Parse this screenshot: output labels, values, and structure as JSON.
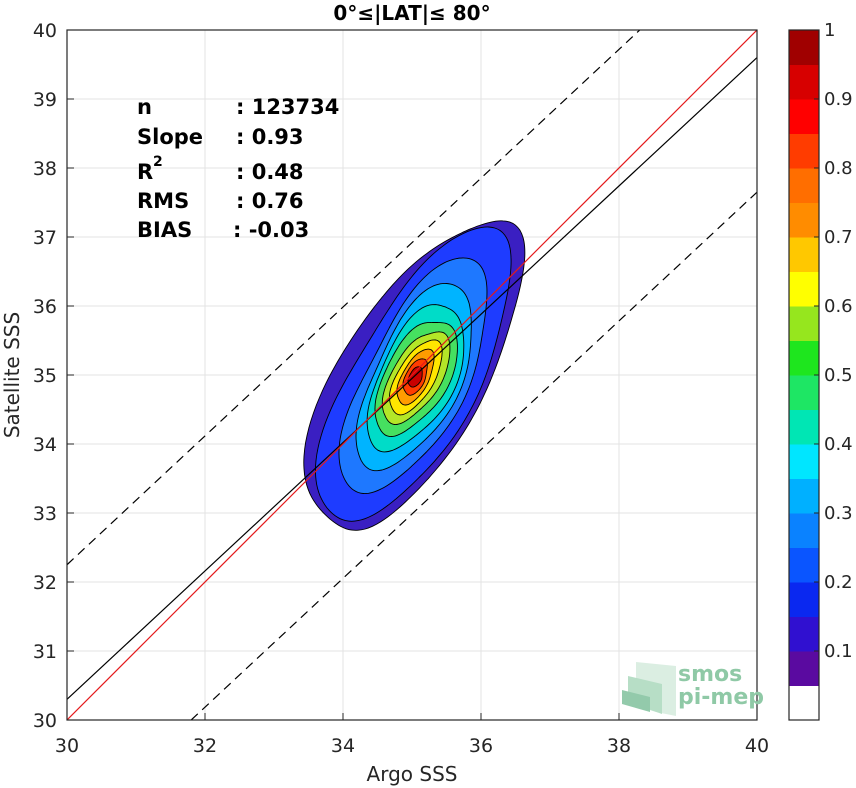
{
  "chart_data": {
    "type": "heatmap",
    "title": "0°≤|LAT|≤ 80°",
    "xlabel": "Argo SSS",
    "ylabel": "Satellite SSS",
    "xlim": [
      30,
      40
    ],
    "ylim": [
      30,
      40
    ],
    "xticks": [
      "30",
      "32",
      "34",
      "36",
      "38",
      "40"
    ],
    "yticks": [
      "30",
      "31",
      "32",
      "33",
      "34",
      "35",
      "36",
      "37",
      "38",
      "39",
      "40"
    ],
    "grid": true,
    "stats": [
      {
        "label": "n",
        "value": ": 123734"
      },
      {
        "label": "Slope",
        "value": ": 0.93"
      },
      {
        "label": "R",
        "sup": "2",
        "value": ": 0.48"
      },
      {
        "label": "RMS",
        "value": ": 0.76"
      },
      {
        "label": "BIAS",
        "value": ": -0.03"
      }
    ],
    "lines": {
      "identity": {
        "color": "#e41a1c",
        "from": [
          30,
          30
        ],
        "to": [
          40,
          40
        ]
      },
      "fit": {
        "color": "#000000",
        "from": [
          30,
          30.3
        ],
        "to": [
          40,
          39.6
        ]
      },
      "upper_bound": {
        "color": "#000000",
        "style": "dashed",
        "from": [
          30,
          32.25
        ],
        "to": [
          38.3,
          40
        ]
      },
      "lower_bound": {
        "color": "#000000",
        "style": "dashed",
        "from": [
          31.8,
          30
        ],
        "to": [
          40,
          37.65
        ]
      }
    },
    "density": {
      "center": [
        35.05,
        34.97
      ],
      "levels": [
        0.05,
        0.1,
        0.2,
        0.3,
        0.4,
        0.5,
        0.6,
        0.7,
        0.8,
        0.9
      ],
      "level_colors": [
        "#3a1fc2",
        "#1e3cff",
        "#1e78ff",
        "#00b4ff",
        "#00dcc8",
        "#46e060",
        "#b4e628",
        "#ffe600",
        "#ff9c00",
        "#ff3c00",
        "#c80000"
      ]
    },
    "colorbar": {
      "ticks": [
        "0.1",
        "0.2",
        "0.3",
        "0.4",
        "0.5",
        "0.6",
        "0.7",
        "0.8",
        "0.9",
        "1"
      ],
      "bins": [
        "#ffffff",
        "#5a0aa0",
        "#3010d0",
        "#0a28f0",
        "#0a55ff",
        "#0a82ff",
        "#00b0ff",
        "#00e6ff",
        "#00e6b4",
        "#1ee664",
        "#1ee61e",
        "#96e61e",
        "#ffff00",
        "#ffc800",
        "#ff8c00",
        "#ff6e00",
        "#ff3c00",
        "#ff0000",
        "#d70000",
        "#a00000"
      ]
    }
  },
  "logo": {
    "line1": "smos",
    "line2": "pi-mep"
  }
}
